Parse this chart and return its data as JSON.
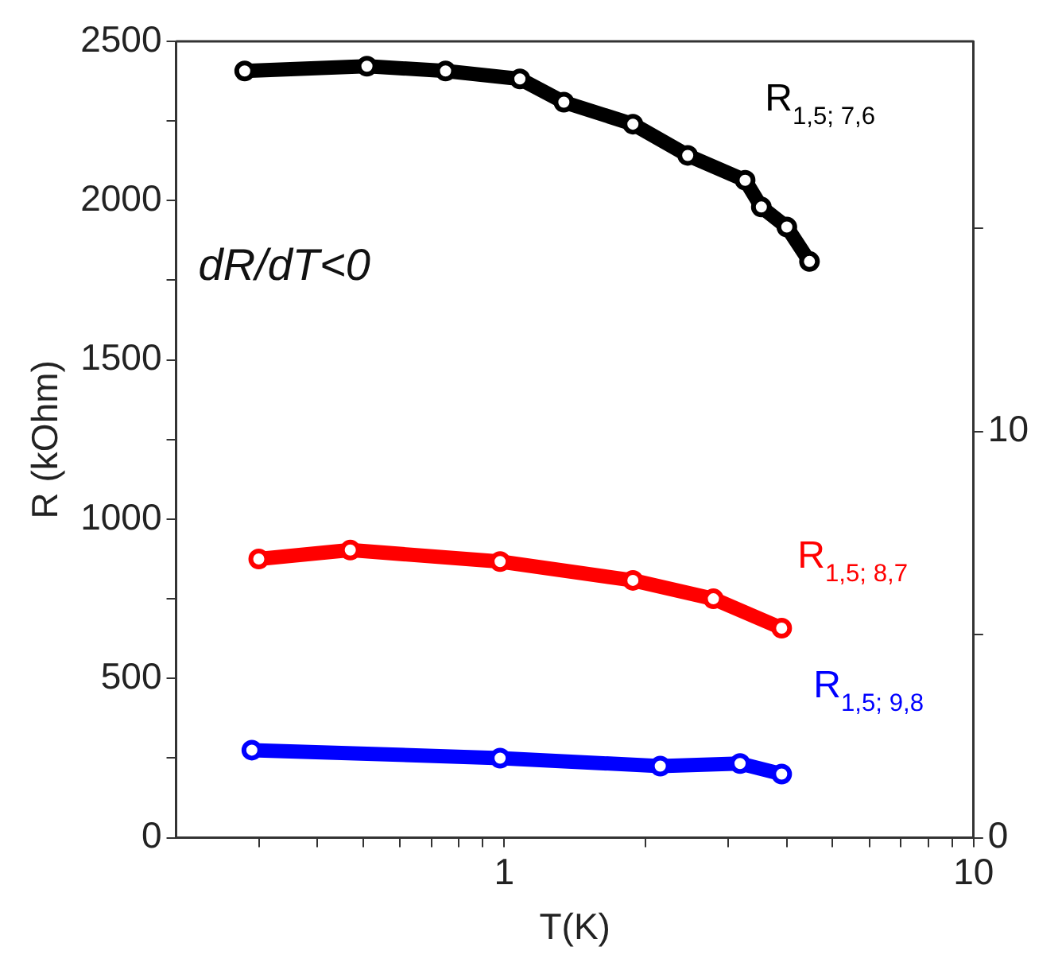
{
  "chart_data": {
    "type": "line",
    "xlabel": "T(K)",
    "ylabel": "R (kOhm)",
    "annotations": [
      "dR/dT<0"
    ],
    "log": "x",
    "xlim": [
      0.2,
      10
    ],
    "xticks": [
      {
        "value": 0.3,
        "label": null
      },
      {
        "value": 0.4,
        "label": null
      },
      {
        "value": 0.5,
        "label": null
      },
      {
        "value": 0.6,
        "label": null
      },
      {
        "value": 0.7,
        "label": null
      },
      {
        "value": 0.8,
        "label": null
      },
      {
        "value": 0.9,
        "label": null
      },
      1,
      {
        "value": 2,
        "label": null
      },
      {
        "value": 3,
        "label": null
      },
      {
        "value": 4,
        "label": null
      },
      {
        "value": 5,
        "label": null
      },
      {
        "value": 6,
        "label": null
      },
      {
        "value": 7,
        "label": null
      },
      {
        "value": 8,
        "label": null
      },
      {
        "value": 9,
        "label": null
      },
      10
    ],
    "ylim": [
      0,
      2500
    ],
    "yticks": [
      0,
      {
        "value": 250,
        "label": null
      },
      500,
      {
        "value": 750,
        "label": null
      },
      1000,
      {
        "value": 1250,
        "label": null
      },
      1500,
      {
        "value": 1750,
        "label": null
      },
      2000,
      {
        "value": 2250,
        "label": null
      },
      2500
    ],
    "y2lim": [
      0,
      19.6
    ],
    "y2ticks": [
      0,
      {
        "value": 5,
        "label": null
      },
      10,
      {
        "value": 15,
        "label": null
      }
    ],
    "grid": false,
    "legend": false,
    "marker": "circle",
    "line_style": "solid",
    "series": [
      {
        "name": "R$_{1,5; 7,6}$",
        "color": "#000000",
        "x": [
          0.28,
          0.51,
          0.75,
          1.08,
          1.34,
          1.88,
          2.46,
          3.26,
          3.53,
          4.0,
          4.47
        ],
        "values": [
          2407,
          2422,
          2407,
          2382,
          2309,
          2240,
          2142,
          2064,
          1980,
          1917,
          1809
        ]
      },
      {
        "name": "R$_{1,5; 8,7}$",
        "color": "#ff0000",
        "x": [
          0.3,
          0.47,
          0.98,
          1.88,
          2.79,
          3.9
        ],
        "values": [
          875,
          903,
          867,
          808,
          750,
          658
        ]
      },
      {
        "name": "R$_{1,5; 9,8}$",
        "color": "#0000ff",
        "x": [
          0.29,
          0.98,
          2.15,
          3.18,
          3.9
        ],
        "values": [
          275,
          250,
          225,
          233,
          200
        ]
      }
    ]
  }
}
